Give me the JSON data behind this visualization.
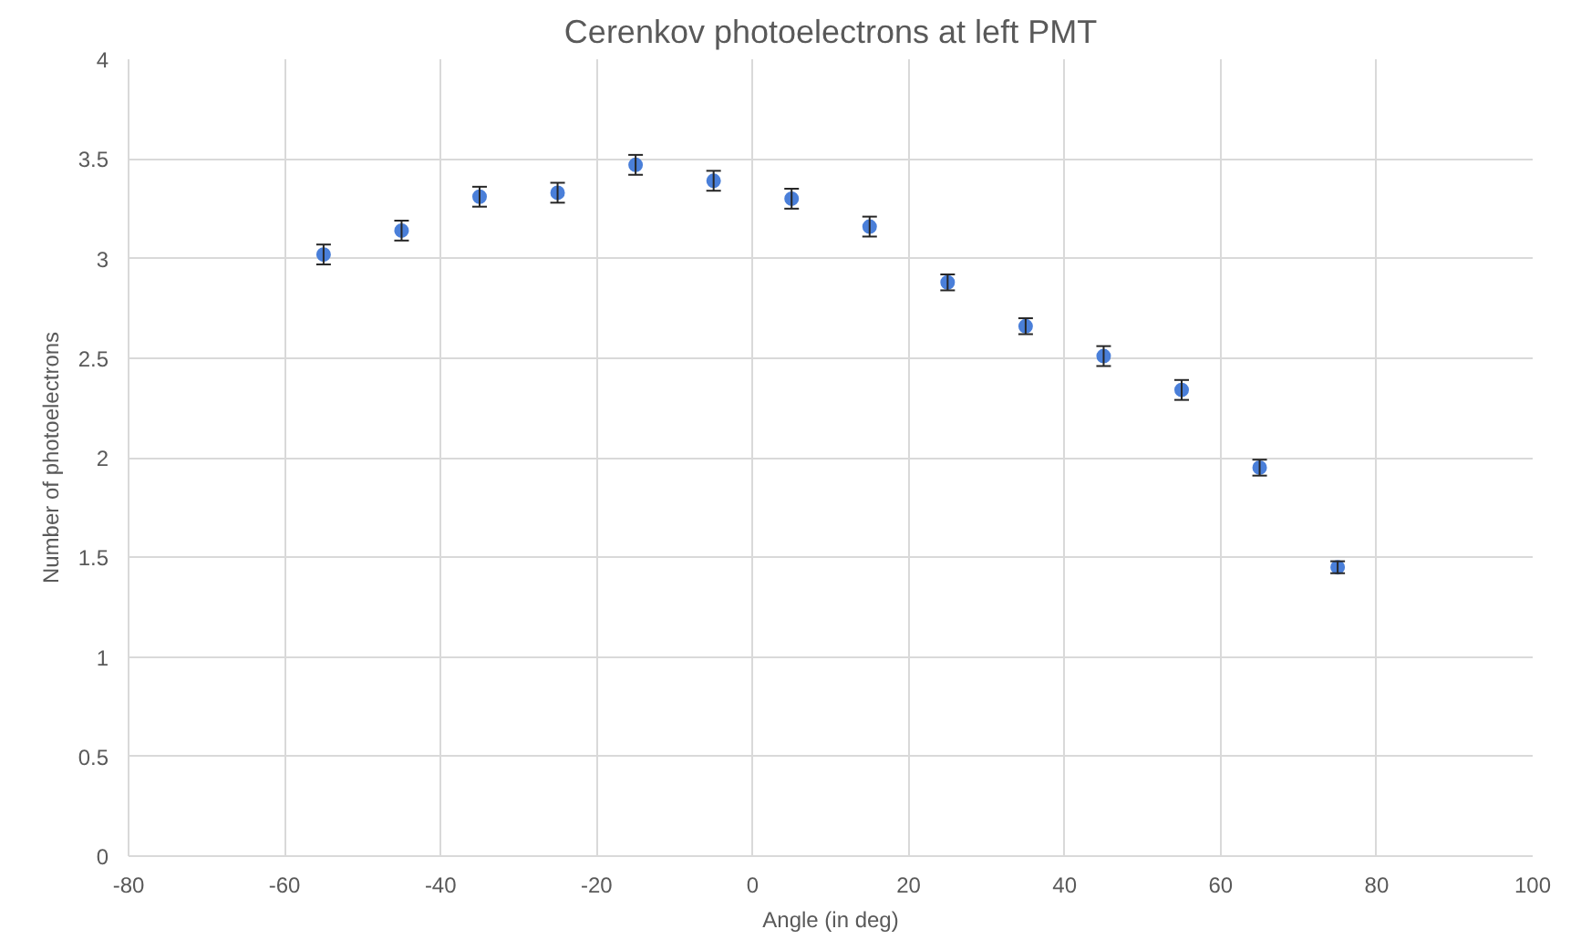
{
  "chart_data": {
    "type": "scatter",
    "title": "Cerenkov photoelectrons at left PMT",
    "xlabel": "Angle (in deg)",
    "ylabel": "Number of photoelectrons",
    "x": [
      -55,
      -45,
      -35,
      -25,
      -15,
      -5,
      5,
      15,
      25,
      35,
      45,
      55,
      65,
      75
    ],
    "series": [
      {
        "color": "#4a7fd9",
        "values": [
          3.02,
          3.14,
          3.31,
          3.33,
          3.47,
          3.39,
          3.3,
          3.16,
          2.88,
          2.66,
          2.51,
          2.34,
          1.95,
          1.45
        ],
        "errors": [
          0.05,
          0.05,
          0.05,
          0.05,
          0.05,
          0.05,
          0.05,
          0.05,
          0.04,
          0.04,
          0.05,
          0.05,
          0.04,
          0.03
        ]
      }
    ],
    "xlim": [
      -80,
      100
    ],
    "xticks": [
      -80,
      -60,
      -40,
      -20,
      0,
      20,
      40,
      60,
      80,
      100
    ],
    "ylim": [
      0,
      4
    ],
    "yticks": [
      0,
      0.5,
      1,
      1.5,
      2,
      2.5,
      3,
      3.5,
      4
    ],
    "grid": true,
    "marker": "circle"
  }
}
